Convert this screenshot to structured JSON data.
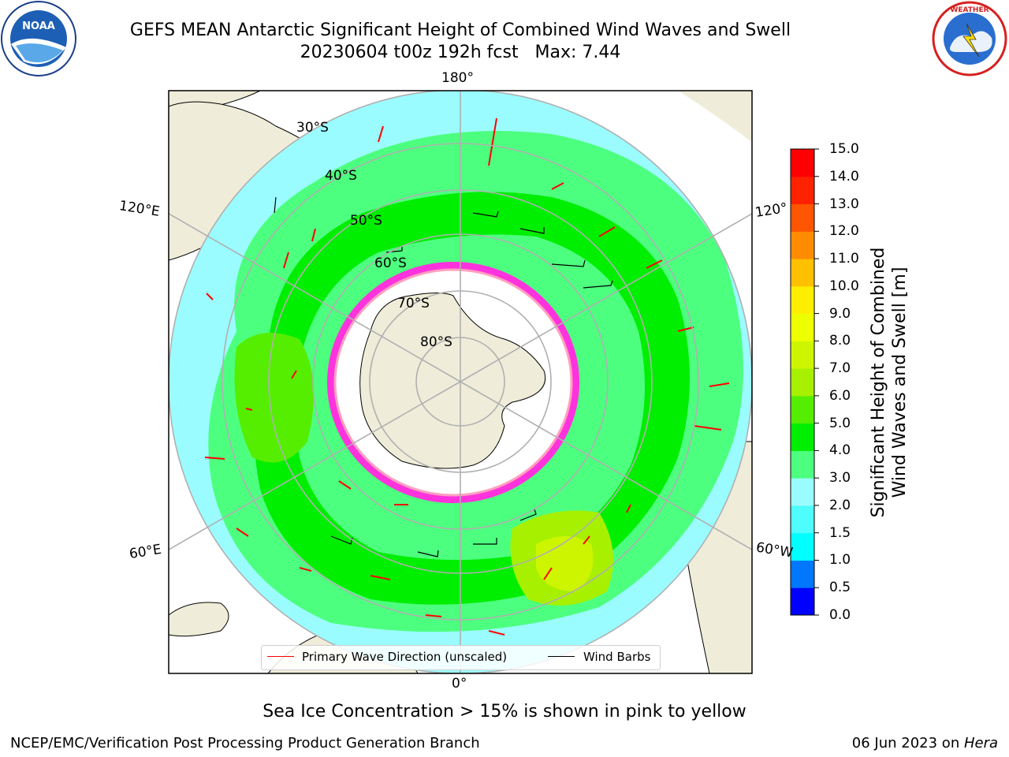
{
  "title": {
    "line1": "GEFS MEAN Antarctic Significant Height of Combined Wind Waves and Swell",
    "line2": "20230604 t00z 192h fcst   Max: 7.44"
  },
  "logos": {
    "left": "NOAA",
    "right": "NATIONAL WEATHER SERVICE"
  },
  "map": {
    "projection": "south-polar-stereographic",
    "longitude_labels": [
      "180°",
      "120°E",
      "120°",
      "60°E",
      "60°W",
      "0°"
    ],
    "latitude_labels": [
      "30°S",
      "40°S",
      "50°S",
      "60°S",
      "70°S",
      "80°S"
    ],
    "colors": {
      "land": "#efedd9",
      "ice_fill": "#ffffff",
      "ice_edge": "#ff33dd",
      "grid": "#b0b0b0"
    }
  },
  "colorbar": {
    "label_line1": "Significant Height of Combined",
    "label_line2": "Wind Waves and Swell [m]",
    "ticks": [
      "15.0",
      "14.0",
      "13.0",
      "12.0",
      "11.0",
      "10.0",
      "9.0",
      "8.0",
      "7.0",
      "6.0",
      "5.0",
      "4.0",
      "3.0",
      "2.0",
      "1.5",
      "1.0",
      "0.5",
      "0.0"
    ],
    "colors_bottom_to_top": [
      "#0000ff",
      "#0077ff",
      "#00ffff",
      "#4dfdff",
      "#9bfcff",
      "#4dff7f",
      "#00ee00",
      "#55ee00",
      "#a6f000",
      "#cdf500",
      "#eeff00",
      "#ffee00",
      "#ffc000",
      "#ff8c00",
      "#ff5500",
      "#ff2200",
      "#ff0000"
    ]
  },
  "legend": {
    "wave_direction": "Primary Wave Direction (unscaled)",
    "wind_barbs": "Wind Barbs",
    "wave_color": "#ff0000",
    "barb_color": "#000000"
  },
  "note": "Sea Ice Concentration > 15% is shown in pink to yellow",
  "footer": {
    "left": "NCEP/EMC/Verification Post Processing Product Generation Branch",
    "date": "06 Jun 2023 on ",
    "machine": "Hera"
  }
}
